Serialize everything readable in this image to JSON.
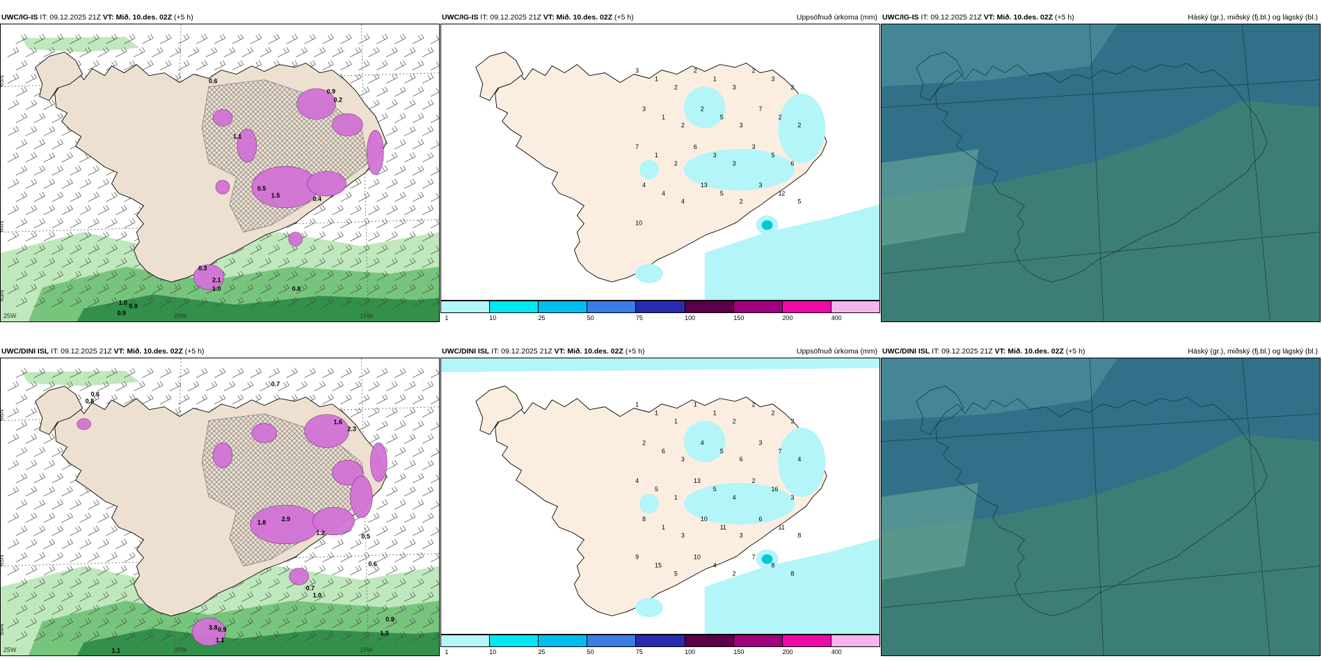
{
  "rows": [
    {
      "model": "UWC/IG-IS",
      "title_rest": "IT: 09.12.2025 21Z",
      "vt_label": "VT:",
      "vt_value": "Mið. 10.des. 02Z",
      "lead": "(+5 h)",
      "precip_title": "Uppsöfnuð úrkoma (mm)",
      "cloud_title": "Háský (gr.), miðský (fj.bl.) og lágský (bl.)",
      "map_values": [
        "0.6",
        "0.9",
        "0.2",
        "1.1",
        "0.5",
        "1.5",
        "0.4",
        "0.3",
        "2.1",
        "1.0",
        "0.8",
        "0.9",
        "0.9",
        "1.0"
      ],
      "precip_values": [
        "3",
        "1",
        "2",
        "2",
        "1",
        "3",
        "2",
        "3",
        "2",
        "3",
        "1",
        "2",
        "2",
        "5",
        "3",
        "7",
        "2",
        "2",
        "7",
        "1",
        "2",
        "6",
        "3",
        "3",
        "3",
        "5",
        "6",
        "4",
        "4",
        "4",
        "13",
        "5",
        "2",
        "3",
        "12",
        "5",
        "10"
      ],
      "lat_labels": [
        "65N",
        "64N",
        "63N"
      ],
      "lon_labels": [
        "25W",
        "20W",
        "15W"
      ]
    },
    {
      "model": "UWC/DINI ISL",
      "title_rest": "IT: 09.12.2025 21Z",
      "vt_label": "VT:",
      "vt_value": "Mið. 10.des. 02Z",
      "lead": "(+5 h)",
      "precip_title": "Uppsöfnuð úrkoma (mm)",
      "cloud_title": "Háský (gr.), miðský (fj.bl.) og lágský (bl.)",
      "map_values": [
        "0.8",
        "0.6",
        "0.7",
        "1.6",
        "2.3",
        "1.8",
        "2.9",
        "1.2",
        "0.5",
        "0.6",
        "0.7",
        "1.0",
        "1.3",
        "0.9",
        "1.1",
        "3.8",
        "1.1",
        "0.9"
      ],
      "precip_values": [
        "1",
        "1",
        "1",
        "1",
        "1",
        "2",
        "2",
        "2",
        "3",
        "2",
        "6",
        "3",
        "4",
        "5",
        "6",
        "3",
        "7",
        "4",
        "4",
        "5",
        "1",
        "13",
        "5",
        "4",
        "2",
        "16",
        "3",
        "8",
        "1",
        "3",
        "10",
        "11",
        "3",
        "6",
        "11",
        "8",
        "9",
        "15",
        "5",
        "10",
        "4",
        "2",
        "7",
        "8",
        "8"
      ],
      "lat_labels": [
        "66N",
        "65N",
        "64N"
      ],
      "lon_labels": [
        "25W",
        "20W",
        "15W"
      ]
    }
  ],
  "colorbar": {
    "colors": [
      "#b3f5f8",
      "#00e8f0",
      "#00bfee",
      "#3a7de6",
      "#2a2aae",
      "#5b0046",
      "#a0007e",
      "#ec0aa8",
      "#f4b4ee"
    ],
    "labels": [
      "1",
      "10",
      "25",
      "50",
      "75",
      "100",
      "150",
      "200",
      "400"
    ]
  },
  "colors": {
    "land": "#ede0d0",
    "land_precip": "#fbeee0",
    "precip_light": "#b3f5f8",
    "ocean_green_light": "#b8e6b5",
    "ocean_green_mid": "#6fc175",
    "ocean_green_dark": "#2a8a45",
    "purple": "#d273d6",
    "cloud_low": "#3a8a82",
    "cloud_mid": "#2f6f88",
    "cloud_high": "#3d7a74"
  },
  "icons": {
    "wind_barb": "wind-barb-icon",
    "hatch": "cross-hatch-pattern"
  }
}
